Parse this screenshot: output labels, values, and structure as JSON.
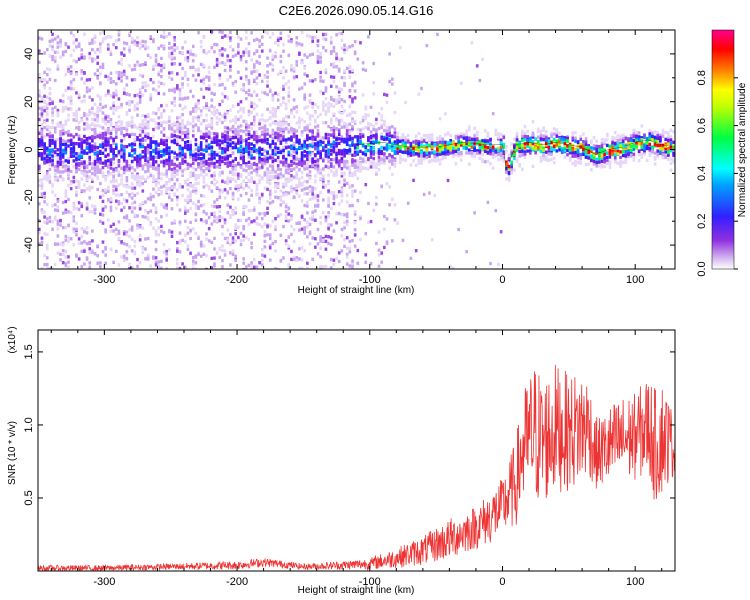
{
  "chart_data": [
    {
      "type": "heatmap",
      "title": "C2E6.2026.090.05.14.G16",
      "xlabel": "Height of straight line (km)",
      "ylabel": "Frequency (Hz)",
      "xlim": [
        -350,
        130
      ],
      "ylim": [
        -50,
        50
      ],
      "xticks": [
        -300,
        -200,
        -100,
        0,
        100
      ],
      "yticks": [
        -40,
        -20,
        0,
        20,
        40
      ],
      "colorbar": {
        "label": "Normalized spectral amplitude",
        "range": [
          0,
          1
        ],
        "ticks": [
          0.0,
          0.2,
          0.4,
          0.6,
          0.8
        ],
        "colors": [
          "#ffffff",
          "#8a2be2",
          "#2020ff",
          "#00ffff",
          "#00ff00",
          "#ffff00",
          "#ff8000",
          "#ff0000",
          "#ff00a0"
        ]
      },
      "ridge": {
        "x": [
          -350,
          -150,
          -110,
          -90,
          -70,
          -50,
          -30,
          -10,
          0,
          3,
          6,
          10,
          20,
          30,
          40,
          50,
          60,
          70,
          80,
          90,
          100,
          110,
          120,
          130
        ],
        "freq_hz": [
          0,
          1,
          2,
          3,
          1,
          1,
          3,
          2,
          2,
          -8,
          -4,
          2,
          3,
          2,
          3,
          2,
          1,
          -2,
          0,
          1,
          3,
          4,
          2,
          1
        ]
      }
    },
    {
      "type": "line",
      "xlabel": "Height of straight line (km)",
      "ylabel": "SNR (10 * v/v)",
      "ylabel_exponent": "(x10⁴)",
      "xlim": [
        -350,
        130
      ],
      "ylim": [
        0,
        1.65
      ],
      "xticks": [
        -300,
        -200,
        -100,
        0,
        100
      ],
      "yticks": [
        0.5,
        1.0,
        1.5
      ],
      "ytick_labels": [
        "0.5",
        "1.0",
        "1.5"
      ],
      "color": "#ee3333",
      "series": [
        {
          "name": "SNR",
          "x": [
            -350,
            -300,
            -250,
            -200,
            -180,
            -150,
            -120,
            -100,
            -80,
            -60,
            -40,
            -20,
            -10,
            0,
            10,
            15,
            20,
            25,
            30,
            40,
            50,
            60,
            65,
            70,
            75,
            80,
            90,
            100,
            110,
            115,
            120,
            125,
            130
          ],
          "mean": [
            0.02,
            0.02,
            0.03,
            0.04,
            0.06,
            0.03,
            0.04,
            0.05,
            0.09,
            0.14,
            0.22,
            0.3,
            0.36,
            0.44,
            0.6,
            0.82,
            0.9,
            0.95,
            0.88,
            0.98,
            0.95,
            0.98,
            1.0,
            0.8,
            0.82,
            0.85,
            0.9,
            0.92,
            1.0,
            0.85,
            0.92,
            0.9,
            0.85
          ],
          "spread": [
            0.02,
            0.02,
            0.02,
            0.03,
            0.03,
            0.02,
            0.03,
            0.04,
            0.07,
            0.1,
            0.14,
            0.15,
            0.18,
            0.2,
            0.3,
            0.4,
            0.45,
            0.5,
            0.45,
            0.45,
            0.4,
            0.4,
            0.35,
            0.25,
            0.25,
            0.28,
            0.3,
            0.3,
            0.35,
            0.4,
            0.4,
            0.3,
            0.2
          ]
        }
      ]
    }
  ]
}
